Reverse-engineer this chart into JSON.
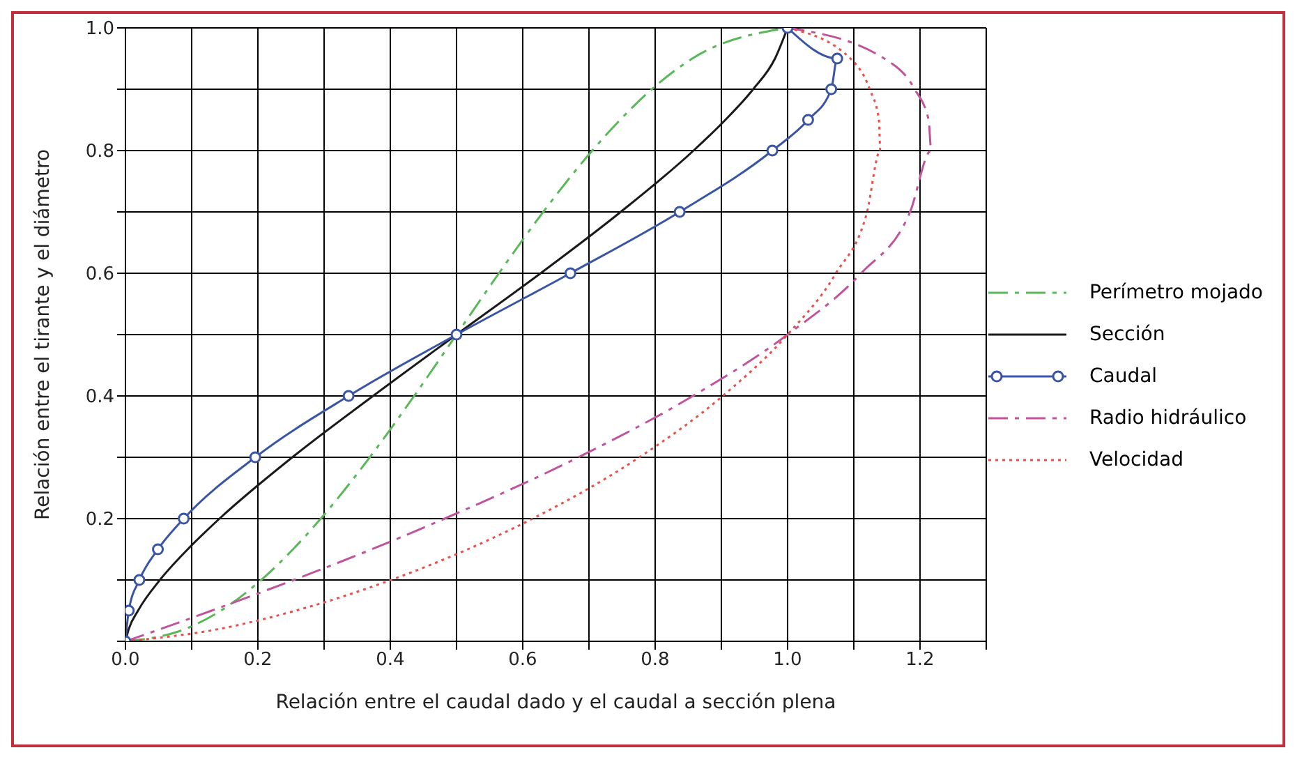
{
  "chart_data": {
    "type": "line",
    "xlabel": "Relación entre el caudal dado y el caudal a sección plena",
    "ylabel": "Relación entre el tirante y el diámetro",
    "xlim": [
      0,
      1.3
    ],
    "ylim": [
      0,
      1
    ],
    "xticks": [
      {
        "value": 0,
        "label": "0.0"
      },
      {
        "value": 0.1,
        "label": null
      },
      {
        "value": 0.2,
        "label": "0.2"
      },
      {
        "value": 0.3,
        "label": null
      },
      {
        "value": 0.4,
        "label": "0.4"
      },
      {
        "value": 0.5,
        "label": null
      },
      {
        "value": 0.6,
        "label": "0.6"
      },
      {
        "value": 0.7,
        "label": null
      },
      {
        "value": 0.8,
        "label": "0.8"
      },
      {
        "value": 0.9,
        "label": null
      },
      {
        "value": 1,
        "label": "1.0"
      },
      {
        "value": 1.1,
        "label": null
      },
      {
        "value": 1.2,
        "label": "1.2"
      },
      {
        "value": 1.3,
        "label": null
      }
    ],
    "yticks": [
      {
        "value": 0,
        "label": null
      },
      {
        "value": 0.1,
        "label": null
      },
      {
        "value": 0.2,
        "label": "0.2"
      },
      {
        "value": 0.3,
        "label": null
      },
      {
        "value": 0.4,
        "label": "0.4"
      },
      {
        "value": 0.5,
        "label": null
      },
      {
        "value": 0.6,
        "label": "0.6"
      },
      {
        "value": 0.7,
        "label": null
      },
      {
        "value": 0.8,
        "label": "0.8"
      },
      {
        "value": 0.9,
        "label": null
      },
      {
        "value": 1,
        "label": "1.0"
      }
    ],
    "grid": true,
    "legend": "right",
    "series": [
      {
        "name": "Perímetro mojado",
        "color": "#5bb85a",
        "line_style": "dashed",
        "marker": "none",
        "x": [
          0,
          0.09,
          0.144,
          0.205,
          0.253,
          0.295,
          0.369,
          0.436,
          0.5,
          0.564,
          0.631,
          0.705,
          0.747,
          0.795,
          0.856,
          1
        ],
        "values": [
          0,
          0.02,
          0.05,
          0.1,
          0.15,
          0.2,
          0.3,
          0.4,
          0.5,
          0.6,
          0.7,
          0.8,
          0.85,
          0.9,
          0.95,
          1
        ]
      },
      {
        "name": "Sección",
        "color": "#1a1a1a",
        "line_style": "solid",
        "marker": "none",
        "x": [
          0,
          0.005,
          0.019,
          0.052,
          0.094,
          0.142,
          0.252,
          0.374,
          0.5,
          0.627,
          0.748,
          0.858,
          0.906,
          0.948,
          0.981,
          1
        ],
        "values": [
          0,
          0.02,
          0.05,
          0.1,
          0.15,
          0.2,
          0.3,
          0.4,
          0.5,
          0.6,
          0.7,
          0.8,
          0.85,
          0.9,
          0.95,
          1
        ]
      },
      {
        "name": "Caudal",
        "color": "#3a55a5",
        "line_style": "solid",
        "marker": "circle",
        "x": [
          0,
          0.005,
          0.021,
          0.049,
          0.088,
          0.196,
          0.337,
          0.5,
          0.672,
          0.837,
          0.977,
          1.031,
          1.066,
          1.075,
          1
        ],
        "values": [
          0,
          0.05,
          0.1,
          0.15,
          0.2,
          0.3,
          0.4,
          0.5,
          0.6,
          0.7,
          0.8,
          0.85,
          0.9,
          0.95,
          1
        ]
      },
      {
        "name": "Radio hidráulico",
        "color": "#c0549c",
        "line_style": "dashed",
        "marker": "none",
        "x": [
          0,
          0.053,
          0.13,
          0.254,
          0.372,
          0.482,
          0.684,
          0.857,
          1,
          1.111,
          1.185,
          1.217,
          1.213,
          1.192,
          1.146,
          1
        ],
        "values": [
          0,
          0.02,
          0.05,
          0.1,
          0.15,
          0.2,
          0.3,
          0.4,
          0.5,
          0.6,
          0.7,
          0.8,
          0.85,
          0.9,
          0.95,
          1
        ]
      },
      {
        "name": "Velocidad",
        "color": "#e8504a",
        "line_style": "dotted",
        "marker": "none",
        "x": [
          0,
          0.141,
          0.257,
          0.401,
          0.517,
          0.615,
          0.776,
          0.902,
          1,
          1.073,
          1.12,
          1.14,
          1.138,
          1.124,
          1.095,
          1
        ],
        "values": [
          0,
          0.02,
          0.05,
          0.1,
          0.15,
          0.2,
          0.3,
          0.4,
          0.5,
          0.6,
          0.7,
          0.8,
          0.85,
          0.9,
          0.95,
          1
        ]
      }
    ]
  }
}
